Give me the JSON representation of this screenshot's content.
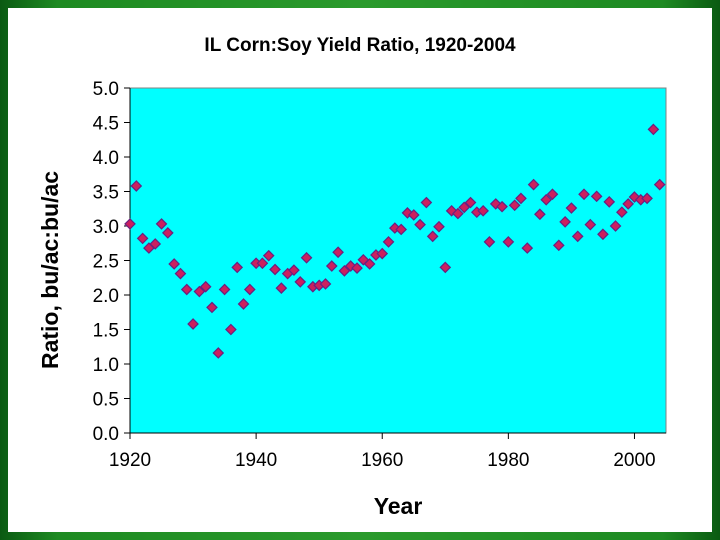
{
  "chart_data": {
    "type": "scatter",
    "title": "IL Corn:Soy Yield Ratio, 1920-2004",
    "xlabel": "Year",
    "ylabel": "Ratio, bu/ac:bu/ac",
    "xlim": [
      1920,
      2005
    ],
    "ylim": [
      0,
      5
    ],
    "x_ticks": [
      "1920",
      "1940",
      "1960",
      "1980",
      "2000"
    ],
    "y_ticks": [
      "0.0",
      "0.5",
      "1.0",
      "1.5",
      "2.0",
      "2.5",
      "3.0",
      "3.5",
      "4.0",
      "4.5",
      "5.0"
    ],
    "grid": false,
    "legend": "none",
    "colors": {
      "plot_background": "#00ffff",
      "marker_fill": "#cc1f5e",
      "marker_stroke": "#6a2080",
      "frame": "#808080"
    },
    "series": [
      {
        "name": "Corn:Soy yield ratio",
        "x": [
          1920,
          1921,
          1922,
          1923,
          1924,
          1925,
          1926,
          1927,
          1928,
          1929,
          1930,
          1931,
          1932,
          1933,
          1934,
          1935,
          1936,
          1937,
          1938,
          1939,
          1940,
          1941,
          1942,
          1943,
          1944,
          1945,
          1946,
          1947,
          1948,
          1949,
          1950,
          1951,
          1952,
          1953,
          1954,
          1955,
          1956,
          1957,
          1958,
          1959,
          1960,
          1961,
          1962,
          1963,
          1964,
          1965,
          1966,
          1967,
          1968,
          1969,
          1970,
          1971,
          1972,
          1973,
          1974,
          1975,
          1976,
          1977,
          1978,
          1979,
          1980,
          1981,
          1982,
          1983,
          1984,
          1985,
          1986,
          1987,
          1988,
          1989,
          1990,
          1991,
          1992,
          1993,
          1994,
          1995,
          1996,
          1997,
          1998,
          1999,
          2000,
          2001,
          2002,
          2003,
          2004
        ],
        "y": [
          3.03,
          3.58,
          2.82,
          2.68,
          2.74,
          3.03,
          2.9,
          2.45,
          2.31,
          2.08,
          1.58,
          2.05,
          2.12,
          1.82,
          1.16,
          2.08,
          1.5,
          2.4,
          1.87,
          2.08,
          2.46,
          2.46,
          2.57,
          2.37,
          2.1,
          2.31,
          2.36,
          2.19,
          2.54,
          2.12,
          2.14,
          2.16,
          2.42,
          2.62,
          2.35,
          2.42,
          2.39,
          2.51,
          2.45,
          2.58,
          2.6,
          2.77,
          2.97,
          2.95,
          3.19,
          3.16,
          3.02,
          3.34,
          2.85,
          2.99,
          2.4,
          3.22,
          3.18,
          3.27,
          3.34,
          3.2,
          3.22,
          2.77,
          3.32,
          3.28,
          2.77,
          3.3,
          3.4,
          2.68,
          3.6,
          3.17,
          3.38,
          3.46,
          2.72,
          3.06,
          3.26,
          2.85,
          3.46,
          3.02,
          3.43,
          2.88,
          3.35,
          3.0,
          3.2,
          3.32,
          3.42,
          3.38,
          3.4,
          4.4,
          3.6
        ]
      }
    ]
  }
}
